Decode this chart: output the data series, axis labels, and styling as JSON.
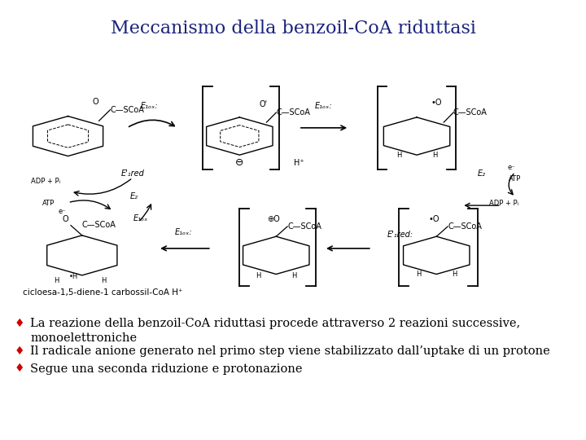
{
  "title": "Meccanismo della benzoil-CoA riduttasi",
  "title_fontsize": 16,
  "title_color": "#1a237e",
  "background_color": "#ffffff",
  "bullet_color": "#cc0000",
  "bullet_symbol": "♦",
  "bullets": [
    " La reazione della benzoil-CoA riduttasi procede attraverso 2 reazioni successive,\n   monoelettroniche",
    " Il radicale anione generato nel primo step viene stabilizzato dall’uptake di un protone",
    " Segue una seconda riduzione e protonazione"
  ],
  "bullet_fontsize": 10.5,
  "bullet_color_text": "#000000"
}
